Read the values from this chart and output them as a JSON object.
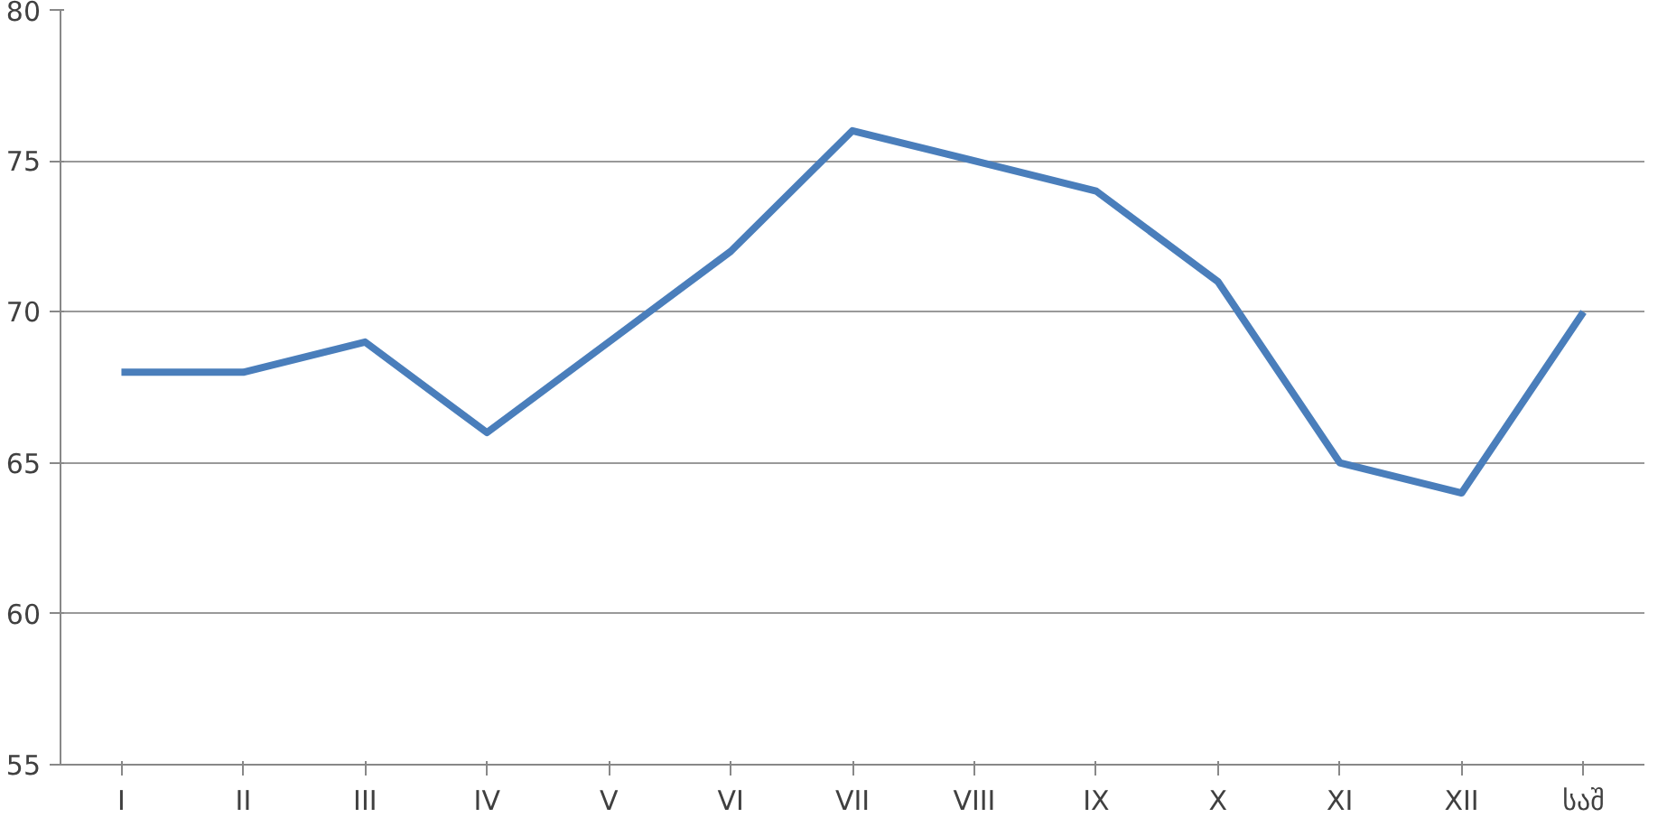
{
  "chart_data": {
    "type": "line",
    "categories": [
      "I",
      "II",
      "III",
      "IV",
      "V",
      "VI",
      "VII",
      "VIII",
      "IX",
      "X",
      "XI",
      "XII",
      "საშ"
    ],
    "series": [
      {
        "color": "#4a7ebb",
        "values": [
          68,
          68,
          69,
          66,
          69,
          72,
          76,
          75,
          74,
          71,
          65,
          64,
          70
        ]
      }
    ],
    "ylim": [
      55,
      80
    ],
    "yticks": [
      55,
      60,
      65,
      70,
      75,
      80
    ],
    "grid": "y",
    "line_style": "solid"
  }
}
